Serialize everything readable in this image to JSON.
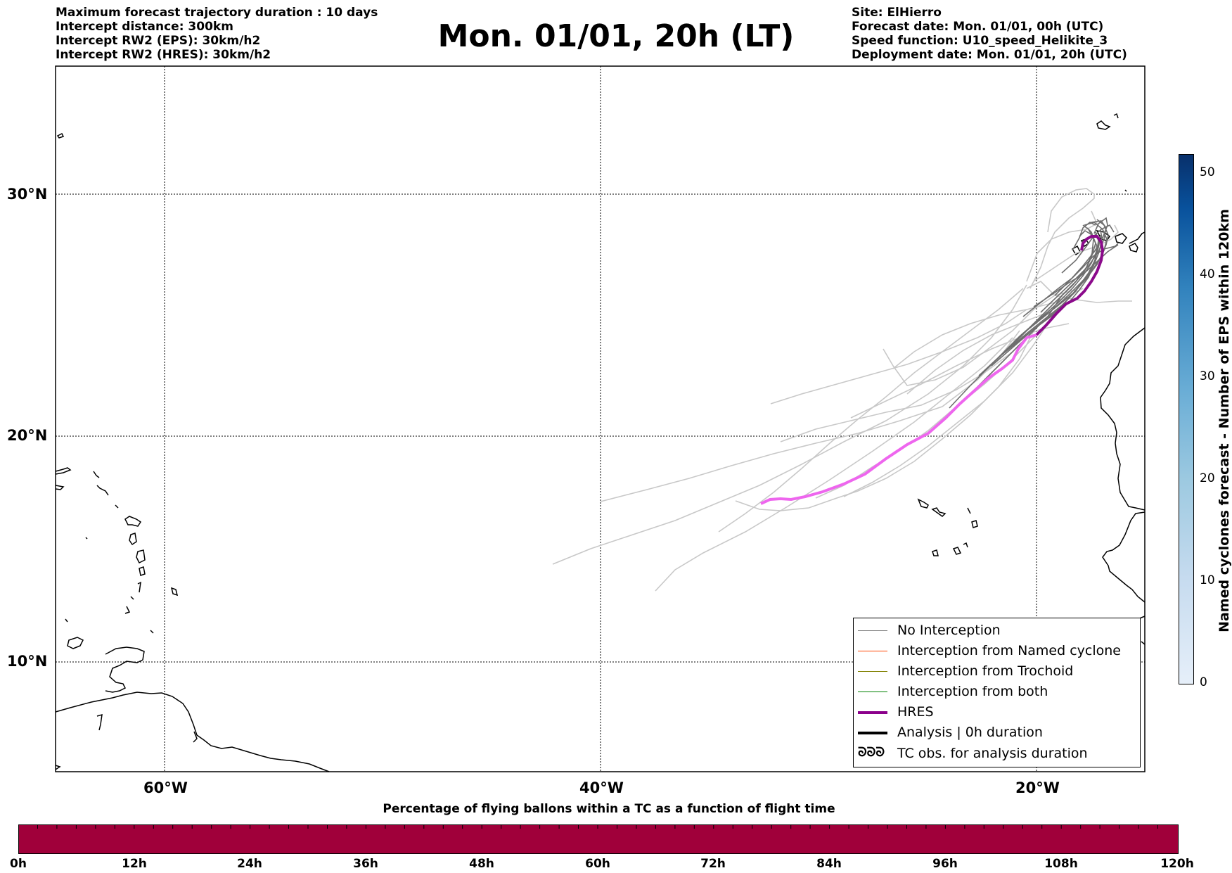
{
  "header_left": [
    "Maximum forecast trajectory duration : 10 days",
    "Intercept distance: 300km",
    "Intercept RW2 (EPS):  30km/h2",
    "Intercept RW2 (HRES): 30km/h2"
  ],
  "title": "Mon. 01/01, 20h (LT)",
  "header_right": [
    "Site: ElHierro",
    "Forecast date: Mon. 01/01, 00h (UTC)",
    "Speed function: U10_speed_Helikite_3",
    "Deployment date: Mon. 01/01, 20h (UTC)"
  ],
  "map": {
    "lat_labels": [
      "30°N",
      "20°N",
      "10°N"
    ],
    "lon_labels": [
      "60°W",
      "40°W",
      "20°W"
    ],
    "colors": {
      "eps_light": "#c8c8c8",
      "eps_dark": "#6e6e6e",
      "hres": "#ee66ee",
      "hres_recent": "#8b0a8b",
      "coast": "#000000"
    }
  },
  "legend": [
    {
      "label": "No Interception",
      "color": "#808080",
      "width": 1.5
    },
    {
      "label": "Interception from Named cyclone",
      "color": "#ff4500",
      "width": 1.5
    },
    {
      "label": "Interception from Trochoid",
      "color": "#808000",
      "width": 1.5
    },
    {
      "label": "Interception from both",
      "color": "#008000",
      "width": 1.5
    },
    {
      "label": "HRES",
      "color": "#8b008b",
      "width": 4
    },
    {
      "label": "Analysis | 0h duration",
      "color": "#000000",
      "width": 4
    },
    {
      "label": "TC obs. for analysis duration",
      "symbol": "ᘐᘐᘐ"
    }
  ],
  "colorbar_right": {
    "label": "Named cyclones forecast - Number of EPS within 120km",
    "ticks": [
      "0",
      "10",
      "20",
      "30",
      "40",
      "50"
    ]
  },
  "colorbar_bottom": {
    "title": "Percentage of flying ballons within a TC as a function of flight time",
    "ticks": [
      "0h",
      "12h",
      "24h",
      "36h",
      "48h",
      "60h",
      "72h",
      "84h",
      "96h",
      "108h",
      "120h"
    ],
    "fill_color": "#a0003a"
  }
}
